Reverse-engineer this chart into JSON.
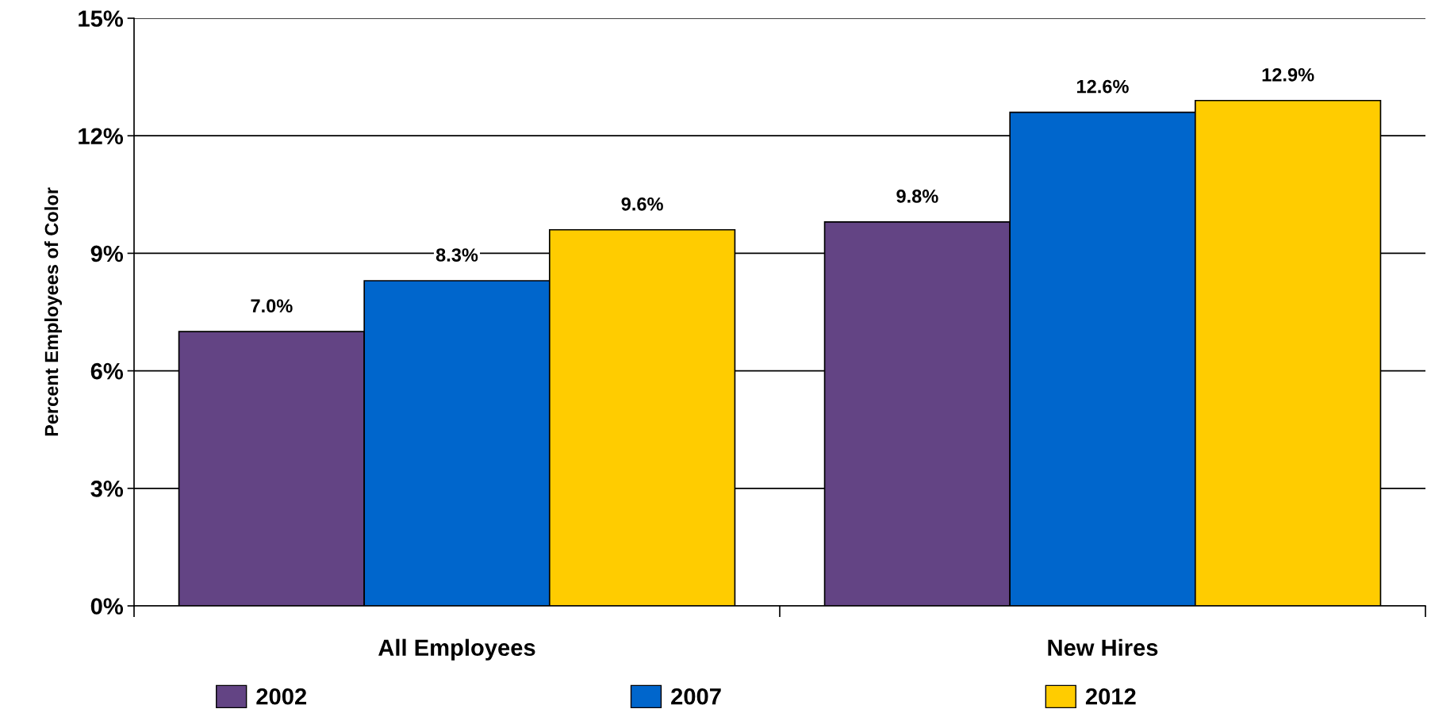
{
  "chart_data": {
    "type": "bar",
    "ylabel": "Percent Employees of Color",
    "categories": [
      "All Employees",
      "New Hires"
    ],
    "series": [
      {
        "name": "2002",
        "color": "#634484",
        "values": [
          7.0,
          9.8
        ],
        "value_labels": [
          "7.0%",
          "9.8%"
        ]
      },
      {
        "name": "2007",
        "color": "#0066cc",
        "values": [
          8.3,
          12.6
        ],
        "value_labels": [
          "8.3%",
          "12.6%"
        ]
      },
      {
        "name": "2012",
        "color": "#ffcc00",
        "values": [
          9.6,
          12.9
        ],
        "value_labels": [
          "9.6%",
          "12.9%"
        ]
      }
    ],
    "ylim": [
      0,
      15
    ],
    "yticks": [
      {
        "value": 0,
        "label": "0%"
      },
      {
        "value": 3,
        "label": "3%"
      },
      {
        "value": 6,
        "label": "6%"
      },
      {
        "value": 9,
        "label": "9%"
      },
      {
        "value": 12,
        "label": "12%"
      },
      {
        "value": 15,
        "label": "15%"
      }
    ],
    "grid": "y",
    "legend": "bottom"
  }
}
